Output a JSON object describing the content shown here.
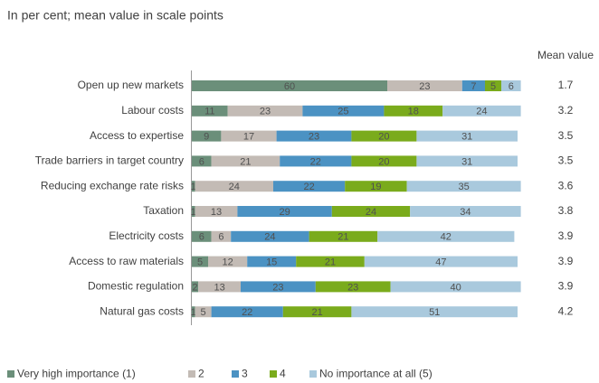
{
  "chart_data": {
    "type": "bar",
    "orientation": "horizontal",
    "stacked": true,
    "subtitle": "In per cent; mean value in scale points",
    "categories": [
      "Open up new markets",
      "Labour costs",
      "Access to expertise",
      "Trade barriers in target country",
      "Reducing exchange rate risks",
      "Taxation",
      "Electricity costs",
      "Access to raw materials",
      "Domestic regulation",
      "Natural gas costs"
    ],
    "series": [
      {
        "name": "Very high importance (1)",
        "color": "#6b8f7a",
        "values": [
          60,
          11,
          9,
          6,
          1,
          1,
          6,
          5,
          2,
          1
        ]
      },
      {
        "name": "2",
        "color": "#c3bbb5",
        "values": [
          23,
          23,
          17,
          21,
          24,
          13,
          6,
          12,
          13,
          5
        ]
      },
      {
        "name": "3",
        "color": "#4b92c3",
        "values": [
          7,
          25,
          23,
          22,
          22,
          29,
          24,
          15,
          23,
          22
        ]
      },
      {
        "name": "4",
        "color": "#7aab1c",
        "values": [
          5,
          18,
          20,
          20,
          19,
          24,
          21,
          21,
          23,
          21
        ]
      },
      {
        "name": "No importance at all (5)",
        "color": "#a9c9dd",
        "values": [
          6,
          24,
          31,
          31,
          35,
          34,
          42,
          47,
          40,
          51
        ]
      }
    ],
    "mean_header": "Mean value",
    "mean_values": [
      1.7,
      3.2,
      3.5,
      3.5,
      3.6,
      3.8,
      3.9,
      3.9,
      3.9,
      4.2
    ],
    "legend": "bottom"
  }
}
